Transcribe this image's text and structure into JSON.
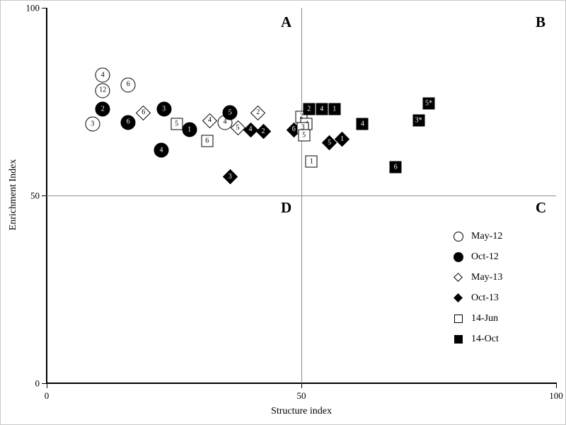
{
  "chart_data": {
    "type": "scatter",
    "title": "",
    "xlabel": "Structure index",
    "ylabel": "Enrichment Index",
    "xlim": [
      0,
      100
    ],
    "ylim": [
      0,
      100
    ],
    "x_ticks": [
      0,
      50,
      100
    ],
    "y_ticks": [
      0,
      50,
      100
    ],
    "grid": "quadrant-lines-only",
    "quadrant_lines": {
      "x": 50,
      "y": 50
    },
    "quadrant_labels": [
      "A",
      "B",
      "D",
      "C"
    ],
    "legend_position": "bottom-right-inside",
    "series": [
      {
        "name": "May-12",
        "marker": "circle",
        "fill": "open",
        "points": [
          {
            "label": "4",
            "x": 11,
            "y": 82
          },
          {
            "label": "12",
            "x": 11,
            "y": 78
          },
          {
            "label": "6",
            "x": 16,
            "y": 79.5
          },
          {
            "label": "3",
            "x": 9,
            "y": 69
          },
          {
            "label": "4",
            "x": 35,
            "y": 69.5
          }
        ]
      },
      {
        "name": "Oct-12",
        "marker": "circle",
        "fill": "filled",
        "points": [
          {
            "label": "2",
            "x": 11,
            "y": 73
          },
          {
            "label": "6",
            "x": 16,
            "y": 69.5
          },
          {
            "label": "3",
            "x": 23,
            "y": 73
          },
          {
            "label": "1",
            "x": 28,
            "y": 67.5
          },
          {
            "label": "4",
            "x": 22.5,
            "y": 62
          },
          {
            "label": "5",
            "x": 36,
            "y": 72
          }
        ]
      },
      {
        "name": "May-13",
        "marker": "diamond",
        "fill": "open",
        "points": [
          {
            "label": "6",
            "x": 19,
            "y": 72
          },
          {
            "label": "4",
            "x": 32,
            "y": 70
          },
          {
            "label": "5",
            "x": 37.5,
            "y": 68
          },
          {
            "label": "2",
            "x": 41.5,
            "y": 72
          }
        ]
      },
      {
        "name": "Oct-13",
        "marker": "diamond",
        "fill": "filled",
        "points": [
          {
            "label": "3",
            "x": 36,
            "y": 55
          },
          {
            "label": "4",
            "x": 40,
            "y": 67.5
          },
          {
            "label": "2",
            "x": 42.5,
            "y": 67
          },
          {
            "label": "6",
            "x": 48.5,
            "y": 67.5
          },
          {
            "label": "5",
            "x": 55.5,
            "y": 64
          },
          {
            "label": "1",
            "x": 58,
            "y": 65
          }
        ]
      },
      {
        "name": "14-Jun",
        "marker": "square",
        "fill": "open",
        "points": [
          {
            "label": "5",
            "x": 25.5,
            "y": 69
          },
          {
            "label": "6",
            "x": 31.5,
            "y": 64.5
          },
          {
            "label": "2",
            "x": 50,
            "y": 71
          },
          {
            "label": "4",
            "x": 51,
            "y": 69
          },
          {
            "label": "3",
            "x": 50.3,
            "y": 68
          },
          {
            "label": "5",
            "x": 50.5,
            "y": 66
          },
          {
            "label": "1",
            "x": 52,
            "y": 59
          }
        ]
      },
      {
        "name": "14-Oct",
        "marker": "square",
        "fill": "filled",
        "points": [
          {
            "label": "2",
            "x": 51.5,
            "y": 73
          },
          {
            "label": "4",
            "x": 54,
            "y": 73
          },
          {
            "label": "1",
            "x": 56.5,
            "y": 73
          },
          {
            "label": "4",
            "x": 62,
            "y": 69
          },
          {
            "label": "5*",
            "x": 75,
            "y": 74.5
          },
          {
            "label": "3*",
            "x": 73,
            "y": 70
          },
          {
            "label": "6",
            "x": 68.5,
            "y": 57.5
          }
        ]
      }
    ]
  }
}
